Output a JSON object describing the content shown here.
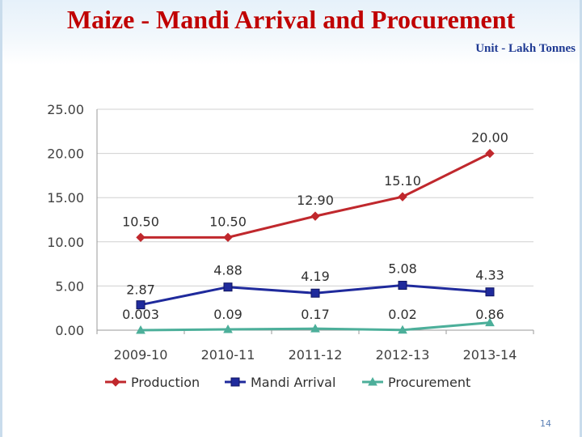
{
  "slide": {
    "title": "Maize - Mandi Arrival and Procurement",
    "unit_label": "Unit - Lakh Tonnes",
    "page_number": "14"
  },
  "chart_data": {
    "type": "line",
    "title": "",
    "xlabel": "",
    "ylabel": "",
    "categories": [
      "2009-10",
      "2010-11",
      "2011-12",
      "2012-13",
      "2013-14"
    ],
    "ylim": [
      0,
      25
    ],
    "yticks": [
      0,
      5,
      10,
      15,
      20,
      25
    ],
    "ytick_labels": [
      "0.00",
      "5.00",
      "10.00",
      "15.00",
      "20.00",
      "25.00"
    ],
    "grid": true,
    "legend_position": "bottom",
    "series": [
      {
        "name": "Production",
        "color": "#c0282d",
        "marker": "diamond",
        "values": [
          10.5,
          10.5,
          12.9,
          15.1,
          20.0
        ],
        "labels": [
          "10.50",
          "10.50",
          "12.90",
          "15.10",
          "20.00"
        ]
      },
      {
        "name": "Mandi Arrival",
        "color": "#1f2a9c",
        "marker": "square",
        "values": [
          2.87,
          4.88,
          4.19,
          5.08,
          4.33
        ],
        "labels": [
          "2.87",
          "4.88",
          "4.19",
          "5.08",
          "4.33"
        ]
      },
      {
        "name": "Procurement",
        "color": "#4caf9a",
        "marker": "triangle",
        "values": [
          0.003,
          0.09,
          0.17,
          0.02,
          0.86
        ],
        "labels": [
          "0.003",
          "0.09",
          "0.17",
          "0.02",
          "0.86"
        ]
      }
    ]
  }
}
